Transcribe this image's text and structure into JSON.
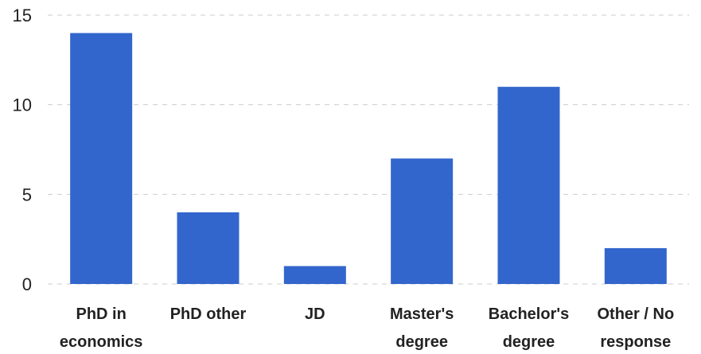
{
  "chart_data": {
    "type": "bar",
    "categories": [
      [
        "PhD in",
        "economics"
      ],
      [
        "PhD other"
      ],
      [
        "JD"
      ],
      [
        "Master's",
        "degree"
      ],
      [
        "Bachelor's",
        "degree"
      ],
      [
        "Other / No",
        "response"
      ]
    ],
    "values": [
      14,
      4,
      1,
      7,
      11,
      2
    ],
    "ylim": [
      0,
      15
    ],
    "yticks": [
      0,
      5,
      10,
      15
    ],
    "grid": true,
    "bar_color": "#3366cc",
    "grid_color": "#cccccc"
  }
}
